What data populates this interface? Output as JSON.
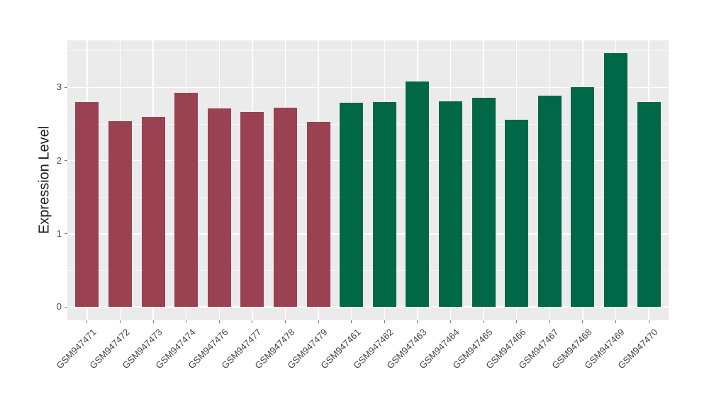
{
  "figure": {
    "background": "#FFFFFF",
    "panel_background": "#EBEBEB",
    "gridline_color": "#FFFFFF",
    "tick_color": "#777777",
    "tick_label_color": "#4D4D4D",
    "axis_title_color": "#1A1A1A"
  },
  "chart_data": {
    "type": "bar",
    "title": "",
    "xlabel": "",
    "ylabel": "Expression Level",
    "categories": [
      "GSM947471",
      "GSM947472",
      "GSM947473",
      "GSM947474",
      "GSM947476",
      "GSM947477",
      "GSM947478",
      "GSM947479",
      "GSM947461",
      "GSM947462",
      "GSM947463",
      "GSM947464",
      "GSM947465",
      "GSM947466",
      "GSM947467",
      "GSM947468",
      "GSM947469",
      "GSM947470"
    ],
    "values": [
      2.8,
      2.54,
      2.6,
      2.93,
      2.71,
      2.66,
      2.72,
      2.53,
      2.79,
      2.8,
      3.08,
      2.81,
      2.86,
      2.56,
      2.89,
      3.0,
      3.47,
      2.8
    ],
    "colors": [
      "#9B4252",
      "#9B4252",
      "#9B4252",
      "#9B4252",
      "#9B4252",
      "#9B4252",
      "#9B4252",
      "#9B4252",
      "#006847",
      "#006847",
      "#006847",
      "#006847",
      "#006847",
      "#006847",
      "#006847",
      "#006847",
      "#006847",
      "#006847"
    ],
    "bar_group_colors": [
      "#9B4252",
      "#006847"
    ],
    "ylim": [
      -0.18,
      3.64
    ],
    "yticks": [
      0,
      1,
      2,
      3
    ],
    "ytick_labels": [
      "0",
      "1",
      "2",
      "3"
    ],
    "y_minor_breaks": [
      0.5,
      1.5,
      2.5,
      3.5
    ],
    "grid": "on",
    "legend": "none",
    "x_tick_angle": 45,
    "bar_width_ratio": 0.7
  }
}
